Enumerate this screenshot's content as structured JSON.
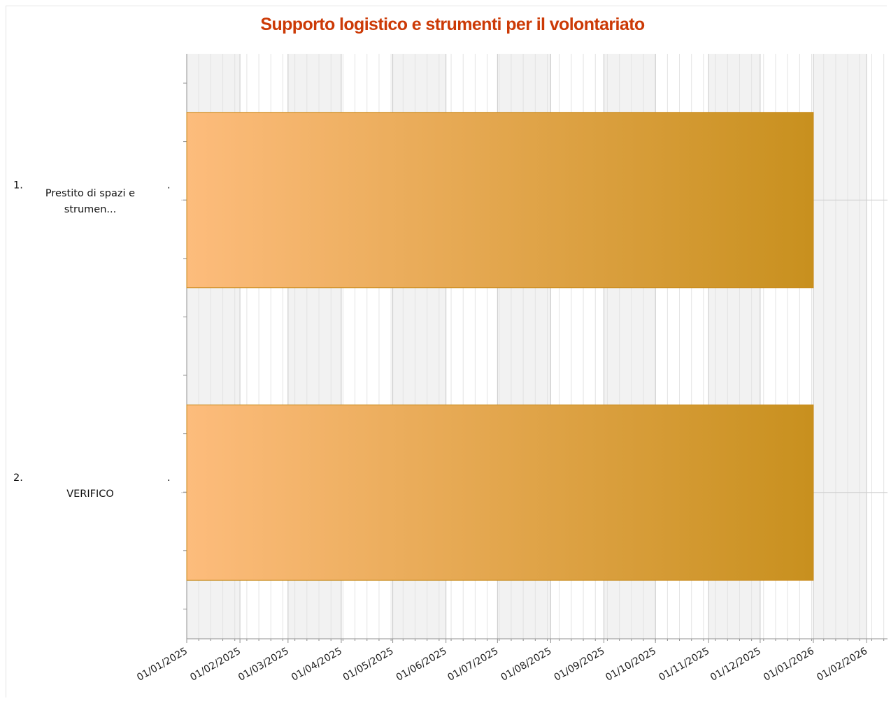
{
  "chart_data": {
    "type": "gantt",
    "title": "Supporto logistico e strumenti per il volontariato",
    "x_axis": {
      "type": "date",
      "range": [
        "2025-01-01",
        "2026-02-01"
      ],
      "tick_labels": [
        "01/01/2025",
        "01/02/2025",
        "01/03/2025",
        "01/04/2025",
        "01/05/2025",
        "01/06/2025",
        "01/07/2025",
        "01/08/2025",
        "01/09/2025",
        "01/10/2025",
        "01/11/2025",
        "01/12/2025",
        "01/01/2026",
        "01/02/2026"
      ],
      "grid": true,
      "alternating_month_bands": true
    },
    "tasks": [
      {
        "index": "1.",
        "label_lines": [
          "Prestito di spazi e",
          "strumen..."
        ],
        "start": "2025-01-01",
        "end": "2026-01-01"
      },
      {
        "index": "2.",
        "label_lines": [
          "VERIFICO"
        ],
        "start": "2025-01-01",
        "end": "2026-01-01"
      }
    ],
    "bar_gradient": [
      "#fdbc7c",
      "#c8901e"
    ],
    "bar_border": "#c88a1a",
    "band_color": "#f2f2f2"
  }
}
